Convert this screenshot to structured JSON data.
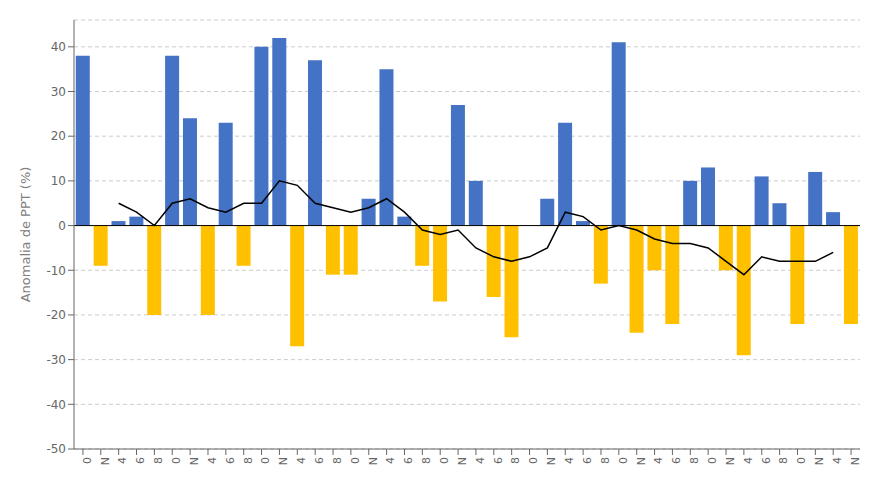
{
  "chart_data": {
    "type": "bar",
    "ylabel": "Anomalia de PPT (%)",
    "categories": [
      "0",
      "N",
      "4",
      "6",
      "8",
      "0",
      "N",
      "4",
      "6",
      "8",
      "0",
      "N",
      "4",
      "6",
      "8",
      "0",
      "N",
      "4",
      "6",
      "8",
      "0",
      "N",
      "4",
      "6",
      "8",
      "0",
      "N",
      "4",
      "6",
      "8",
      "0",
      "N",
      "4",
      "6",
      "8",
      "0",
      "N",
      "4",
      "6",
      "8",
      "0",
      "N",
      "4",
      "N"
    ],
    "series": [
      {
        "type": "bar",
        "values": [
          38,
          -9,
          1,
          2,
          -20,
          38,
          24,
          -20,
          23,
          -9,
          40,
          42,
          -27,
          37,
          -11,
          -11,
          6,
          35,
          2,
          -9,
          -17,
          27,
          10,
          -16,
          -25,
          0,
          6,
          23,
          1,
          -13,
          41,
          -24,
          -10,
          -22,
          10,
          13,
          -10,
          -29,
          11,
          5,
          -22,
          12,
          3,
          -22
        ],
        "colors": [
          "#4472C4",
          "#FFC000",
          "#4472C4",
          "#4472C4",
          "#FFC000",
          "#4472C4",
          "#4472C4",
          "#FFC000",
          "#4472C4",
          "#FFC000",
          "#4472C4",
          "#4472C4",
          "#FFC000",
          "#4472C4",
          "#FFC000",
          "#FFC000",
          "#4472C4",
          "#4472C4",
          "#4472C4",
          "#FFC000",
          "#FFC000",
          "#4472C4",
          "#4472C4",
          "#FFC000",
          "#FFC000",
          "#4472C4",
          "#4472C4",
          "#4472C4",
          "#4472C4",
          "#FFC000",
          "#4472C4",
          "#FFC000",
          "#FFC000",
          "#FFC000",
          "#4472C4",
          "#4472C4",
          "#FFC000",
          "#FFC000",
          "#4472C4",
          "#4472C4",
          "#FFC000",
          "#4472C4",
          "#4472C4",
          "#FFC000"
        ]
      },
      {
        "type": "line",
        "values": [
          null,
          null,
          5,
          3,
          0,
          5,
          6,
          4,
          3,
          5,
          5,
          10,
          9,
          5,
          4,
          3,
          4,
          6,
          3,
          -1,
          -2,
          -1,
          -5,
          -7,
          -8,
          -7,
          -5,
          3,
          2,
          -1,
          0,
          -1,
          -3,
          -4,
          -4,
          -5,
          -8,
          -11,
          -7,
          -8,
          -8,
          -8,
          -6,
          null
        ],
        "color": "#000000"
      }
    ],
    "ylim": [
      -50,
      46
    ],
    "yticks": [
      -50,
      -40,
      -30,
      -20,
      -10,
      0,
      10,
      20,
      30,
      40
    ],
    "grid": true
  }
}
